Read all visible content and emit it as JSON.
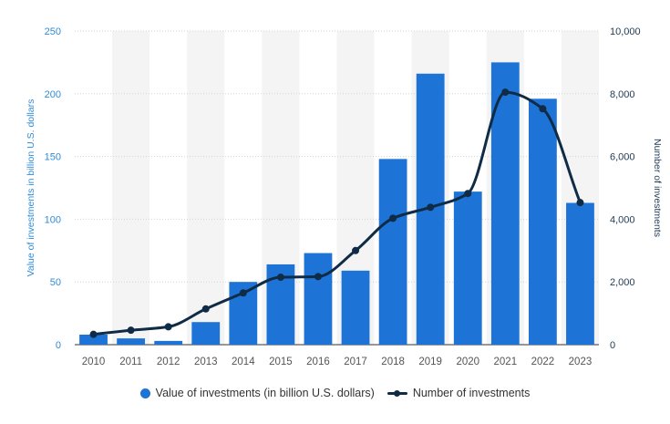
{
  "chart_data": {
    "type": "bar",
    "categories": [
      "2010",
      "2011",
      "2012",
      "2013",
      "2014",
      "2015",
      "2016",
      "2017",
      "2018",
      "2019",
      "2020",
      "2021",
      "2022",
      "2023"
    ],
    "series": [
      {
        "name": "Value of investments (in billion U.S. dollars)",
        "type": "bar",
        "axis": "left",
        "color": "#1d73d6",
        "values": [
          8,
          5,
          3,
          18,
          50,
          64,
          73,
          59,
          148,
          216,
          122,
          225,
          196,
          113
        ]
      },
      {
        "name": "Number of investments",
        "type": "line",
        "axis": "right",
        "color": "#0f2b46",
        "values": [
          330,
          460,
          570,
          1140,
          1650,
          2150,
          2170,
          3000,
          4030,
          4380,
          4820,
          8050,
          7520,
          4530
        ]
      }
    ],
    "y_left": {
      "label": "Value of investments in billion U.S. dollars",
      "ticks": [
        "250",
        "200",
        "150",
        "100",
        "50",
        "0"
      ],
      "range": [
        0,
        250
      ],
      "color": "#2f8bd8"
    },
    "y_right": {
      "label": "Number of investments",
      "ticks": [
        "10,000",
        "8,000",
        "6,000",
        "4,000",
        "2,000",
        "0"
      ],
      "range": [
        0,
        10000
      ],
      "color": "#1e3a55"
    },
    "grid": true,
    "legend_position": "bottom-center"
  }
}
